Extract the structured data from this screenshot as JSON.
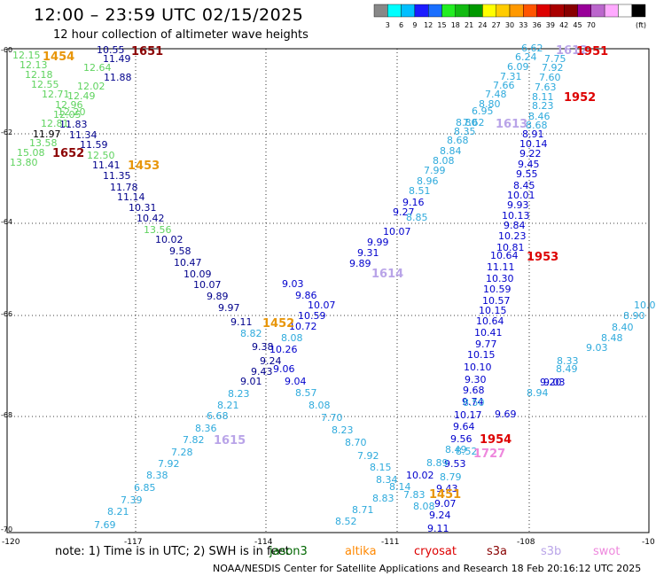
{
  "title": "12:00 – 23:59 UTC 02/15/2025",
  "subtitle": "12 hour collection of altimeter wave heights",
  "colorbar": {
    "colors": [
      "#888888",
      "#00ffff",
      "#00bfff",
      "#1c1cff",
      "#1a6fff",
      "#22ee22",
      "#11bb11",
      "#009900",
      "#ffff00",
      "#ffcc00",
      "#ff9900",
      "#ff5500",
      "#dd0000",
      "#aa0000",
      "#880000",
      "#990099",
      "#bb66cc",
      "#ffaaff",
      "#ffffff",
      "#000000"
    ],
    "labels": [
      "3",
      "6",
      "9",
      "12",
      "15",
      "18",
      "21",
      "24",
      "27",
      "30",
      "33",
      "36",
      "39",
      "42",
      "45",
      "70",
      "(ft)"
    ]
  },
  "axes": {
    "lat_labels": [
      "-60",
      "-62",
      "-64",
      "-66",
      "-68",
      "-70"
    ],
    "lon_labels": [
      "-120",
      "-117",
      "-114",
      "-111",
      "-108",
      "-10"
    ]
  },
  "tracks": [
    {
      "color": "#00008b",
      "points": [
        [
          "10.55"
        ],
        [
          "11.49"
        ],
        [
          "11.88"
        ],
        [
          "11.83"
        ],
        [
          "11.34"
        ],
        [
          "11.59"
        ],
        [
          "11.41"
        ],
        [
          "11.35"
        ],
        [
          "11.78"
        ],
        [
          "11.14"
        ],
        [
          "10.31"
        ],
        [
          "10.42"
        ]
      ]
    },
    {
      "color": "#00008b",
      "points": [
        [
          "10.02"
        ],
        [
          "9.58"
        ],
        [
          "10.47"
        ],
        [
          "10.09"
        ],
        [
          "10.07"
        ],
        [
          "9.89"
        ],
        [
          "9.97"
        ],
        [
          "9.11"
        ],
        [
          "9.38"
        ],
        [
          "9.24"
        ],
        [
          "9.43"
        ],
        [
          "9.01"
        ]
      ]
    },
    {
      "color": "#5fd35f",
      "points": [
        [
          "12.15"
        ],
        [
          "12.13"
        ],
        [
          "12.18"
        ],
        [
          "12.55"
        ],
        [
          "12.64"
        ],
        [
          "12.02"
        ],
        [
          "12.71"
        ],
        [
          "12.49"
        ],
        [
          "12.96"
        ],
        [
          "12.20"
        ],
        [
          "12.05"
        ],
        [
          "12.81"
        ],
        [
          "13.58"
        ],
        [
          "15.08"
        ],
        [
          "13.80"
        ],
        [
          "12.50"
        ],
        [
          "13.56"
        ]
      ]
    },
    {
      "color": "#000000",
      "points": [
        [
          "11.97"
        ]
      ]
    },
    {
      "color": "#2eaadc",
      "points": [
        [
          "8.82"
        ],
        [
          "8.08"
        ],
        [
          "8.23"
        ],
        [
          "8.21"
        ],
        [
          "6.68"
        ],
        [
          "8.36"
        ],
        [
          "7.82"
        ],
        [
          "7.28"
        ],
        [
          "7.92"
        ],
        [
          "8.38"
        ],
        [
          "6.85"
        ],
        [
          "7.39"
        ],
        [
          "8.21"
        ],
        [
          "7.69"
        ]
      ]
    },
    {
      "color": "#0000cd",
      "points": [
        [
          "10.72"
        ],
        [
          "10.59"
        ],
        [
          "10.26"
        ],
        [
          "9.06"
        ],
        [
          "9.04"
        ],
        [
          "10.07"
        ],
        [
          "9.86"
        ],
        [
          "9.03"
        ],
        [
          "9.89"
        ],
        [
          "9.31"
        ],
        [
          "9.99"
        ],
        [
          "10.07"
        ],
        [
          "9.27"
        ],
        [
          "9.16"
        ]
      ]
    },
    {
      "color": "#2eaadc",
      "points": [
        [
          "8.57"
        ],
        [
          "8.08"
        ],
        [
          "7.70"
        ],
        [
          "8.23"
        ],
        [
          "8.70"
        ],
        [
          "7.92"
        ],
        [
          "8.15"
        ],
        [
          "8.34"
        ],
        [
          "8.14"
        ],
        [
          "8.83"
        ],
        [
          "8.71"
        ],
        [
          "8.52"
        ],
        [
          "8.85"
        ],
        [
          "8.51"
        ],
        [
          "8.96"
        ],
        [
          "7.99"
        ],
        [
          "8.08"
        ],
        [
          "8.84"
        ],
        [
          "8.68"
        ],
        [
          "8.35"
        ],
        [
          "8.80"
        ],
        [
          "7.62"
        ],
        [
          "6.95"
        ],
        [
          "8.80"
        ],
        [
          "7.48"
        ],
        [
          "7.66"
        ],
        [
          "7.31"
        ],
        [
          "6.09"
        ],
        [
          "6.24"
        ],
        [
          "6.62"
        ],
        [
          "8.11"
        ],
        [
          "8.23"
        ],
        [
          "8.46"
        ],
        [
          "8.68"
        ],
        [
          "7.63"
        ],
        [
          "7.60"
        ],
        [
          "7.92"
        ],
        [
          "7.75"
        ]
      ]
    },
    {
      "color": "#0000cd",
      "points": [
        [
          "8.91"
        ],
        [
          "10.14"
        ],
        [
          "9.22"
        ],
        [
          "9.45"
        ],
        [
          "9.55"
        ],
        [
          "8.45"
        ],
        [
          "10.01"
        ],
        [
          "9.93"
        ],
        [
          "10.13"
        ],
        [
          "9.84"
        ],
        [
          "10.23"
        ],
        [
          "10.81"
        ],
        [
          "10.64"
        ],
        [
          "11.11"
        ],
        [
          "10.30"
        ],
        [
          "10.59"
        ],
        [
          "10.57"
        ],
        [
          "10.15"
        ],
        [
          "10.64"
        ],
        [
          "10.41"
        ],
        [
          "9.77"
        ],
        [
          "10.15"
        ],
        [
          "10.10"
        ],
        [
          "9.30"
        ],
        [
          "9.68"
        ],
        [
          "9.74"
        ],
        [
          "10.17"
        ],
        [
          "9.64"
        ],
        [
          "9.56"
        ],
        [
          "9.53"
        ],
        [
          "9.43"
        ],
        [
          "9.07"
        ],
        [
          "9.24"
        ],
        [
          "9.11"
        ],
        [
          "10.02"
        ]
      ]
    },
    {
      "color": "#2eaadc",
      "points": [
        [
          "7.83"
        ],
        [
          "8.08"
        ],
        [
          "8.89"
        ],
        [
          "8.79"
        ],
        [
          "8.49"
        ],
        [
          "8.52"
        ],
        [
          "8.50"
        ],
        [
          "8.94"
        ],
        [
          "8.49"
        ],
        [
          "8.33"
        ],
        [
          "9.03"
        ],
        [
          "8.48"
        ],
        [
          "8.40"
        ],
        [
          "8.90"
        ],
        [
          "10.0"
        ]
      ]
    },
    {
      "color": "#0000cd",
      "points": [
        [
          "9.69"
        ],
        [
          "9.20"
        ],
        [
          "9.03"
        ]
      ]
    }
  ],
  "time_labels": [
    {
      "text": "1651",
      "color": "#8b0000"
    },
    {
      "text": "1454",
      "color": "#e8960a"
    },
    {
      "text": "1652",
      "color": "#8b0000"
    },
    {
      "text": "1453",
      "color": "#e8960a"
    },
    {
      "text": "1452",
      "color": "#e8960a"
    },
    {
      "text": "1615",
      "color": "#b9a4e8"
    },
    {
      "text": "1614",
      "color": "#b9a4e8"
    },
    {
      "text": "1613",
      "color": "#b9a4e8"
    },
    {
      "text": "1612",
      "color": "#b9a4e8"
    },
    {
      "text": "1951",
      "color": "#dd0000"
    },
    {
      "text": "1952",
      "color": "#dd0000"
    },
    {
      "text": "1953",
      "color": "#dd0000"
    },
    {
      "text": "1954",
      "color": "#dd0000"
    },
    {
      "text": "1727",
      "color": "#ee88dd"
    },
    {
      "text": "1451",
      "color": "#e8960a"
    }
  ],
  "note": "note: 1) Time is in UTC; 2) SWH is in feet",
  "satellites": [
    {
      "name": "jason3",
      "color": "#006600"
    },
    {
      "name": "altika",
      "color": "#ff8800"
    },
    {
      "name": "cryosat",
      "color": "#dd0000"
    },
    {
      "name": "s3a",
      "color": "#880000"
    },
    {
      "name": "s3b",
      "color": "#b9a4e8"
    },
    {
      "name": "swot",
      "color": "#ee88dd"
    }
  ],
  "credit": "NOAA/NESDIS Center for Satellite Applications and Research   18 Feb 20:16:12 UTC 2025"
}
